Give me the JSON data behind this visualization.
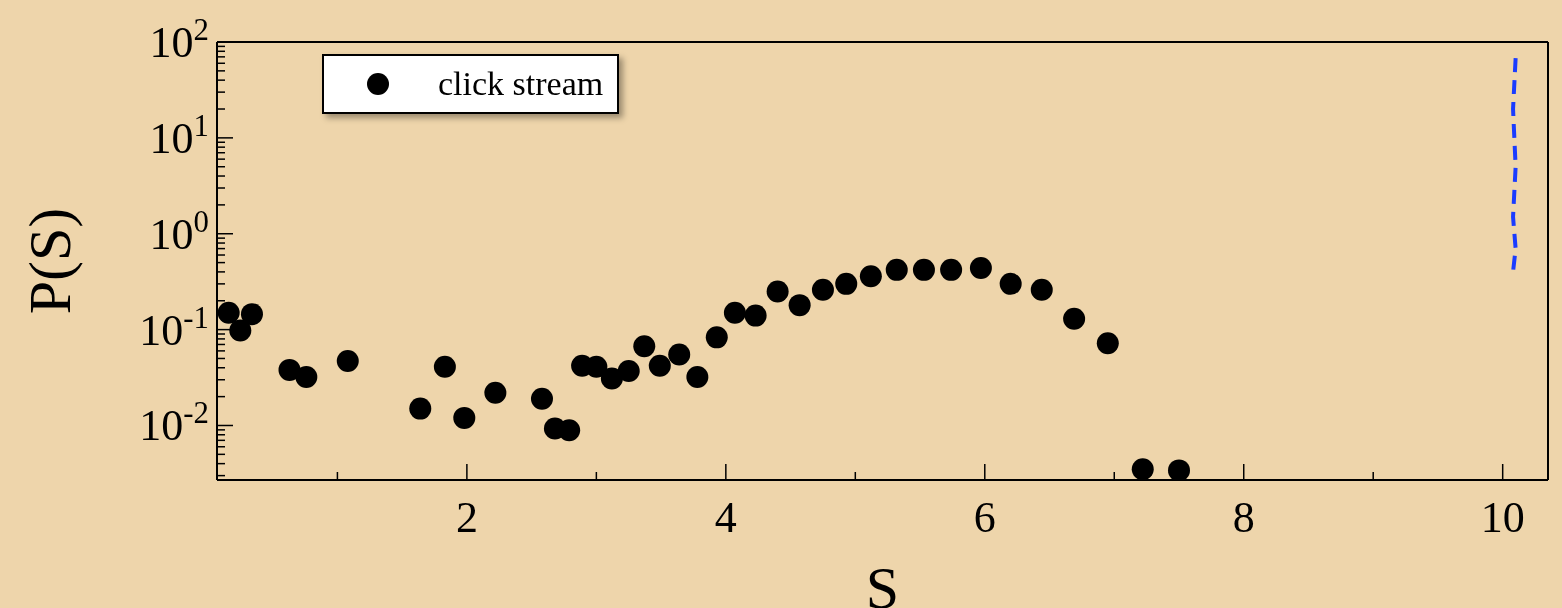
{
  "chart_data": {
    "type": "scatter",
    "xlabel": "S",
    "ylabel": "P(S)",
    "log": "y",
    "grid": false,
    "legend": "top left",
    "marker": "circle",
    "xlim": [
      0.07,
      10.35
    ],
    "xticks": [
      {
        "value": 1,
        "label": null
      },
      2,
      {
        "value": 3,
        "label": null
      },
      4,
      {
        "value": 5,
        "label": null
      },
      6,
      {
        "value": 7,
        "label": null
      },
      8,
      {
        "value": 9,
        "label": null
      },
      10
    ],
    "ylim": [
      0.0027,
      100
    ],
    "yticks": [
      {
        "value": 0.003,
        "label": null
      },
      {
        "value": 0.004,
        "label": null
      },
      {
        "value": 0.005,
        "label": null
      },
      {
        "value": 0.006,
        "label": null
      },
      {
        "value": 0.007,
        "label": null
      },
      {
        "value": 0.008,
        "label": null
      },
      {
        "value": 0.009,
        "label": null
      },
      {
        "value": 0.01,
        "label": "10$^{-2}$"
      },
      {
        "value": 0.02,
        "label": null
      },
      {
        "value": 0.03,
        "label": null
      },
      {
        "value": 0.04,
        "label": null
      },
      {
        "value": 0.05,
        "label": null
      },
      {
        "value": 0.06,
        "label": null
      },
      {
        "value": 0.07,
        "label": null
      },
      {
        "value": 0.08,
        "label": null
      },
      {
        "value": 0.09,
        "label": null
      },
      {
        "value": 0.1,
        "label": "10$^{-1}$"
      },
      {
        "value": 0.2,
        "label": null
      },
      {
        "value": 0.3,
        "label": null
      },
      {
        "value": 0.4,
        "label": null
      },
      {
        "value": 0.5,
        "label": null
      },
      {
        "value": 0.6,
        "label": null
      },
      {
        "value": 0.7,
        "label": null
      },
      {
        "value": 0.8,
        "label": null
      },
      {
        "value": 0.9,
        "label": null
      },
      {
        "value": 1,
        "label": "10$^{0}$"
      },
      {
        "value": 2,
        "label": null
      },
      {
        "value": 3,
        "label": null
      },
      {
        "value": 4,
        "label": null
      },
      {
        "value": 5,
        "label": null
      },
      {
        "value": 6,
        "label": null
      },
      {
        "value": 7,
        "label": null
      },
      {
        "value": 8,
        "label": null
      },
      {
        "value": 9,
        "label": null
      },
      {
        "value": 10,
        "label": "10$^{1}$"
      },
      {
        "value": 20,
        "label": null
      },
      {
        "value": 30,
        "label": null
      },
      {
        "value": 40,
        "label": null
      },
      {
        "value": 50,
        "label": null
      },
      {
        "value": 60,
        "label": null
      },
      {
        "value": 70,
        "label": null
      },
      {
        "value": 80,
        "label": null
      },
      {
        "value": 90,
        "label": null
      },
      {
        "value": 100,
        "label": "10$^{2}$"
      }
    ],
    "series": [
      {
        "name": "click stream",
        "color": "#000000",
        "x": [
          0.16,
          0.25,
          0.34,
          0.63,
          0.76,
          1.08,
          1.64,
          1.83,
          1.98,
          2.22,
          2.58,
          2.68,
          2.79,
          2.89,
          3.0,
          3.12,
          3.25,
          3.37,
          3.49,
          3.64,
          3.78,
          3.93,
          4.07,
          4.23,
          4.4,
          4.57,
          4.75,
          4.93,
          5.12,
          5.32,
          5.53,
          5.74,
          5.97,
          6.2,
          6.44,
          6.69,
          6.95,
          7.22,
          7.5
        ],
        "values": [
          0.15,
          0.098,
          0.145,
          0.038,
          0.032,
          0.047,
          0.015,
          0.041,
          0.012,
          0.022,
          0.019,
          0.0093,
          0.0089,
          0.042,
          0.041,
          0.031,
          0.037,
          0.067,
          0.042,
          0.055,
          0.032,
          0.083,
          0.15,
          0.14,
          0.25,
          0.18,
          0.26,
          0.3,
          0.36,
          0.42,
          0.42,
          0.42,
          0.44,
          0.3,
          0.26,
          0.13,
          0.072,
          0.0035,
          0.0034
        ]
      },
      {
        "type": "line",
        "color": "#1a3cff",
        "line_style": "dashed",
        "marker": "none",
        "x": [
          10.1,
          10.08,
          10.1,
          10.08,
          10.1,
          10.08
        ],
        "values": [
          68,
          20,
          5,
          1.5,
          0.7,
          0.4
        ]
      }
    ]
  }
}
